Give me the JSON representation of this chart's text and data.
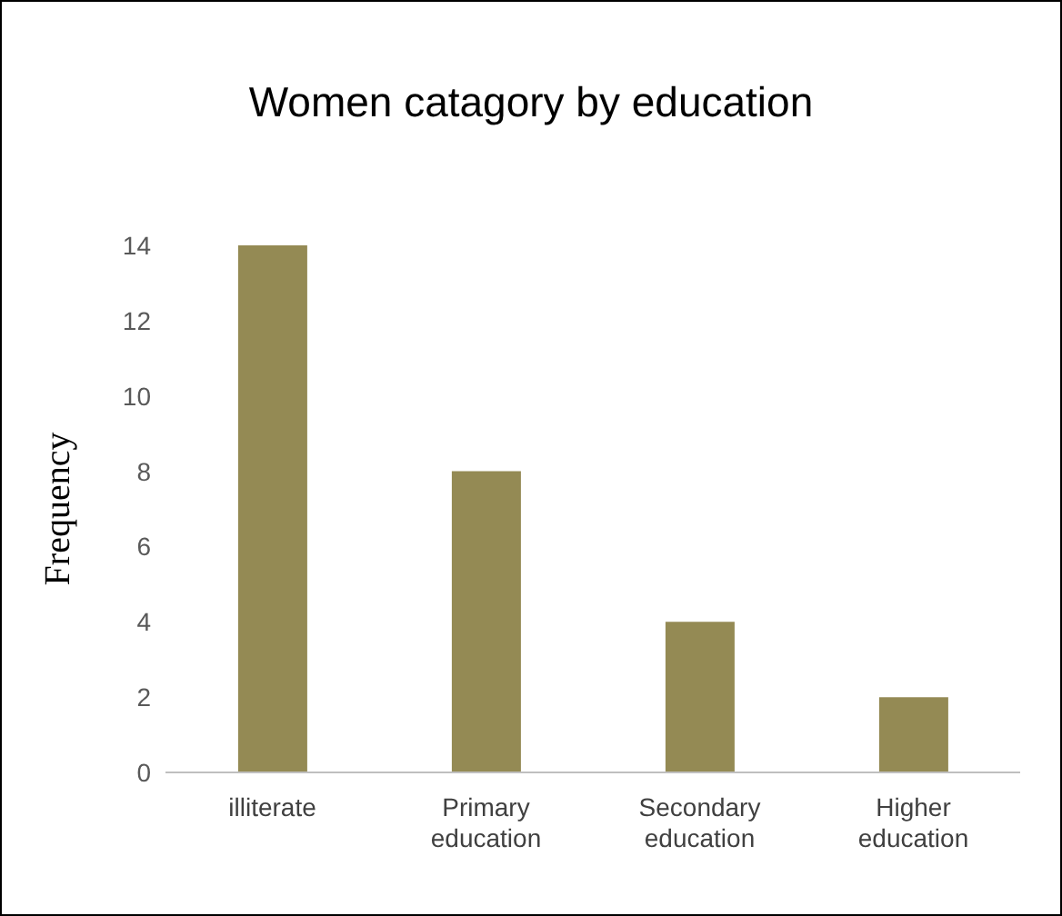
{
  "chart_data": {
    "type": "bar",
    "title": "Women catagory by education",
    "ylabel": "Frequency",
    "categories": [
      "illiterate",
      "Primary education",
      "Secondary education",
      "Higher education"
    ],
    "values": [
      14,
      8,
      4,
      2
    ],
    "color": "#948a54",
    "ylim": [
      0,
      14
    ],
    "yticks": [
      0,
      2,
      4,
      6,
      8,
      10,
      12,
      14
    ],
    "grid": false,
    "legend": false
  }
}
